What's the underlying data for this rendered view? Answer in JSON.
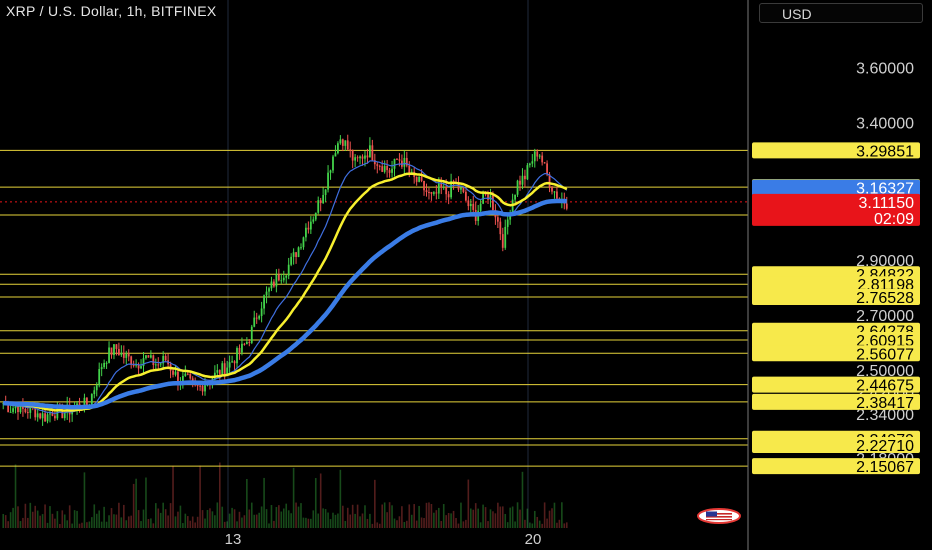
{
  "header": {
    "title": "XRP / U.S. Dollar, 1h, BITFINEX",
    "currency": "USD"
  },
  "colors": {
    "up": "#43d44b",
    "down": "#ef5350",
    "level_line": "#e6d33a",
    "label_bg": "#f7e94b",
    "ema_fast": "#3f6fe0",
    "ema_mid": "#f7ef2e",
    "ema_slow": "#3a7ce6",
    "price_bg": "#e8141a",
    "ma_label_bg": "#3a7ce6"
  },
  "chart_data": {
    "type": "candlestick",
    "symbol": "XRP / U.S. Dollar",
    "interval": "1h",
    "exchange": "BITFINEX",
    "ylim": [
      2.12,
      3.72
    ],
    "price_axis_ticks": [
      "3.60000",
      "3.40000",
      "2.90000",
      "2.70000",
      "2.50000",
      "2.42000",
      "2.34000",
      "2.18000"
    ],
    "x_ticks": [
      "13",
      "20"
    ],
    "horizontal_levels": [
      "3.29851",
      "3.16488",
      "3.06360",
      "2.84822",
      "2.81198",
      "2.76528",
      "2.64278",
      "2.60915",
      "2.56077",
      "2.44675",
      "2.38417",
      "2.24979",
      "2.22710",
      "2.15067"
    ],
    "current_price": "3.11150",
    "countdown": "02:09",
    "moving_average_value": "3.16327",
    "close_path": [
      2.38,
      2.36,
      2.37,
      2.35,
      2.36,
      2.34,
      2.33,
      2.35,
      2.34,
      2.35,
      2.36,
      2.38,
      2.37,
      2.44,
      2.52,
      2.56,
      2.58,
      2.55,
      2.54,
      2.52,
      2.55,
      2.53,
      2.52,
      2.54,
      2.5,
      2.46,
      2.47,
      2.43,
      2.44,
      2.46,
      2.48,
      2.5,
      2.52,
      2.55,
      2.58,
      2.62,
      2.7,
      2.76,
      2.8,
      2.84,
      2.86,
      2.9,
      2.95,
      3.02,
      3.06,
      3.12,
      3.2,
      3.3,
      3.35,
      3.3,
      3.25,
      3.28,
      3.3,
      3.26,
      3.24,
      3.22,
      3.27,
      3.25,
      3.2,
      3.18,
      3.15,
      3.12,
      3.16,
      3.14,
      3.18,
      3.15,
      3.1,
      3.06,
      3.12,
      3.14,
      3.06,
      2.96,
      3.1,
      3.18,
      3.2,
      3.26,
      3.3,
      3.22,
      3.16,
      3.12,
      3.11
    ]
  }
}
